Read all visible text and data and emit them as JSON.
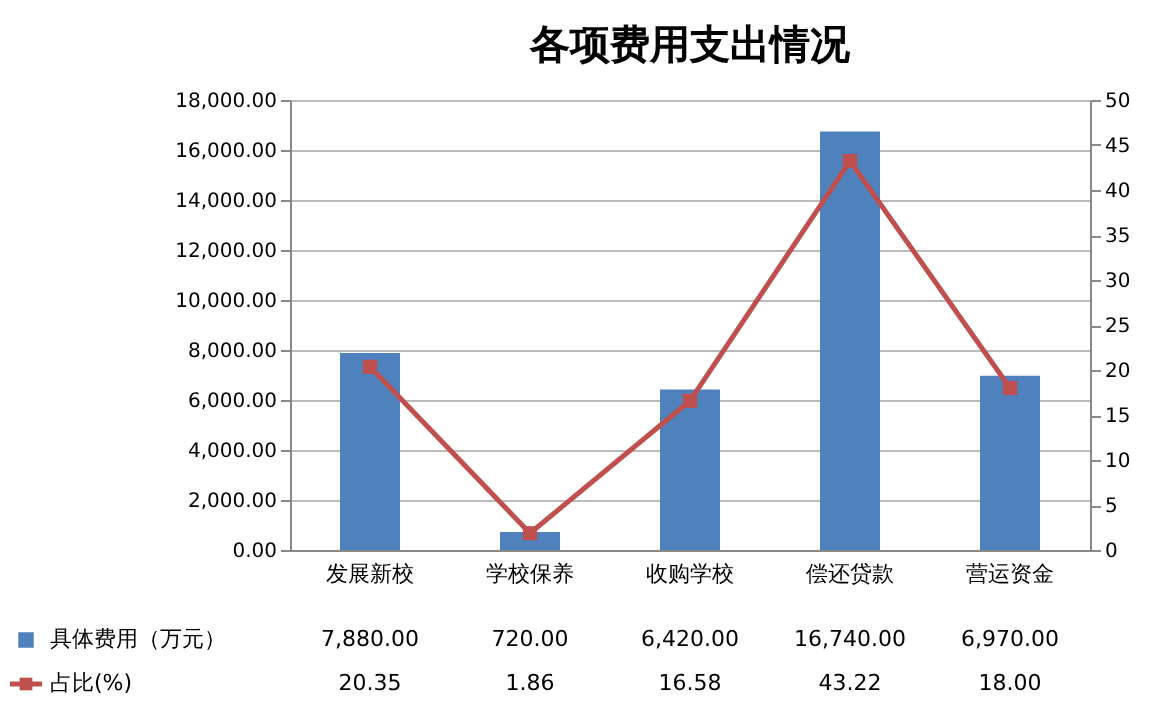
{
  "chart_data": {
    "type": "bar",
    "title": "各项费用支出情况",
    "categories": [
      "发展新校",
      "学校保养",
      "收购学校",
      "偿还贷款",
      "营运资金"
    ],
    "series": [
      {
        "name": "具体费用（万元）",
        "color": "#4f81bd",
        "values": [
          7880,
          720,
          6420,
          16740,
          6970
        ],
        "value_labels": [
          "7,880.00",
          "720.00",
          "6,420.00",
          "16,740.00",
          "6,970.00"
        ]
      },
      {
        "name": "占比(%)",
        "type": "line",
        "axis": "y2",
        "marker": "square",
        "color": "#c0504d",
        "values": [
          20.35,
          1.86,
          16.58,
          43.22,
          18.0
        ],
        "value_labels": [
          "20.35",
          "1.86",
          "16.58",
          "43.22",
          "18.00"
        ]
      }
    ],
    "ylim": [
      0,
      18000
    ],
    "yticks": [
      {
        "value": 0,
        "label": "0.00"
      },
      {
        "value": 2000,
        "label": "2,000.00"
      },
      {
        "value": 4000,
        "label": "4,000.00"
      },
      {
        "value": 6000,
        "label": "6,000.00"
      },
      {
        "value": 8000,
        "label": "8,000.00"
      },
      {
        "value": 10000,
        "label": "10,000.00"
      },
      {
        "value": 12000,
        "label": "12,000.00"
      },
      {
        "value": 14000,
        "label": "14,000.00"
      },
      {
        "value": 16000,
        "label": "16,000.00"
      },
      {
        "value": 18000,
        "label": "18,000.00"
      }
    ],
    "y2lim": [
      0,
      50
    ],
    "y2ticks": [
      0,
      5,
      10,
      15,
      20,
      25,
      30,
      35,
      40,
      45,
      50
    ],
    "grid": "y",
    "legend": "bottom left"
  }
}
